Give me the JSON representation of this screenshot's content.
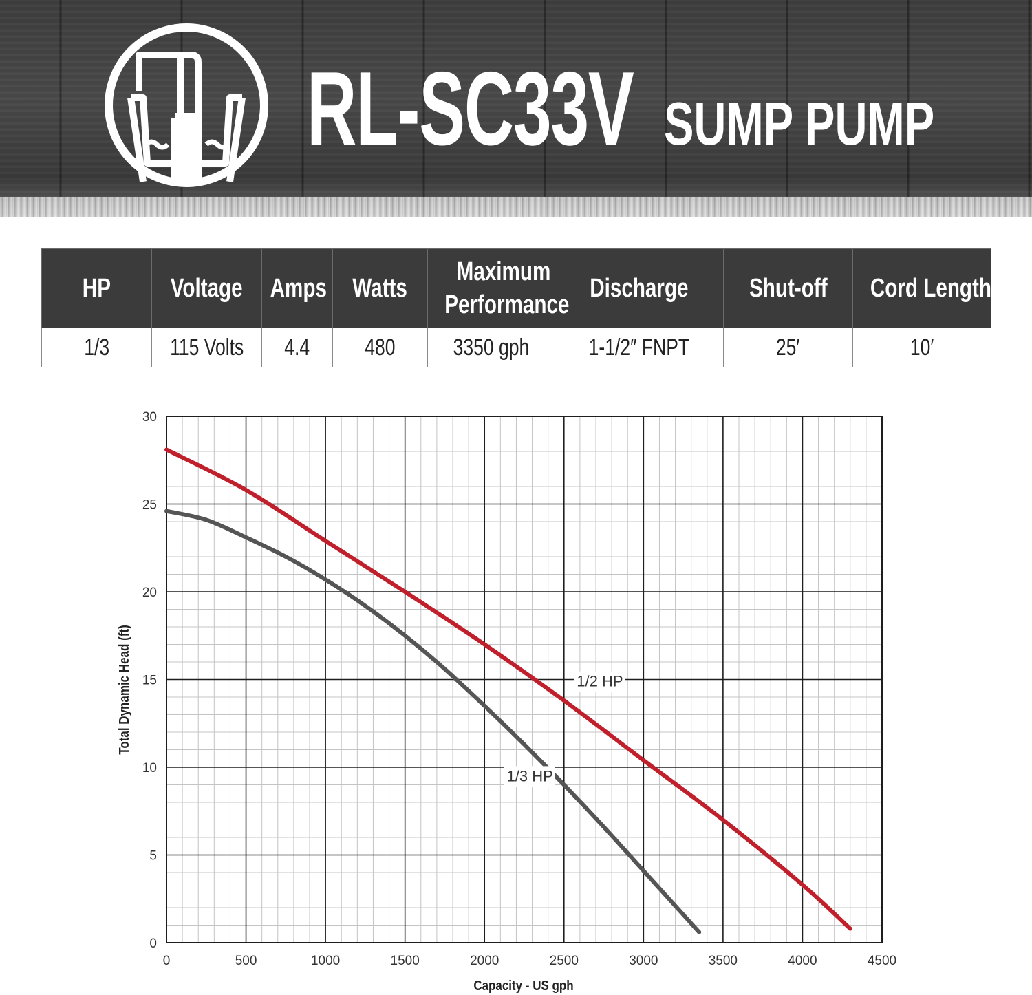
{
  "header": {
    "model": "RL-SC33V",
    "product": "SUMP PUMP",
    "logo_icon": "sump-pump-logo-icon"
  },
  "specs": {
    "headers": [
      "HP",
      "Voltage",
      "Amps",
      "Watts",
      "Maximum Performance",
      "Discharge",
      "Shut-off",
      "Cord Length"
    ],
    "values": [
      "1/3",
      "115 Volts",
      "4.4",
      "480",
      "3350 gph",
      "1-1/2″ FNPT",
      "25′",
      "10′"
    ]
  },
  "chart_data": {
    "type": "line",
    "title": "",
    "xlabel": "Capacity - US gph",
    "ylabel": "Total Dynamic Head (ft)",
    "xlim": [
      0,
      4500
    ],
    "ylim": [
      0,
      30
    ],
    "xticks": [
      "0",
      "500",
      "1000",
      "1500",
      "2000",
      "2500",
      "3000",
      "3500",
      "4000",
      "4500"
    ],
    "yticks": [
      "0",
      "5",
      "10",
      "15",
      "20",
      "25",
      "30"
    ],
    "grid": true,
    "series": [
      {
        "name": "1/2 HP",
        "color": "#c0202c",
        "x": [
          0,
          500,
          1000,
          1500,
          2000,
          2500,
          3000,
          3500,
          4000,
          4300
        ],
        "y": [
          28.1,
          25.8,
          22.9,
          20.0,
          17.0,
          13.8,
          10.4,
          7.0,
          3.3,
          0.8
        ]
      },
      {
        "name": "1/3 HP",
        "color": "#555555",
        "x": [
          0,
          250,
          500,
          750,
          1000,
          1250,
          1500,
          1750,
          2000,
          2250,
          2500,
          2750,
          3000,
          3200,
          3350
        ],
        "y": [
          24.6,
          24.1,
          23.1,
          22.0,
          20.7,
          19.2,
          17.5,
          15.6,
          13.5,
          11.3,
          9.0,
          6.6,
          4.1,
          2.1,
          0.6
        ]
      }
    ]
  }
}
